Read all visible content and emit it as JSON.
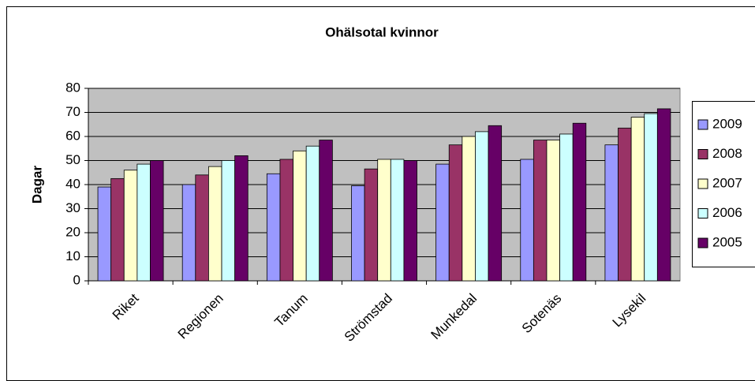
{
  "chart_data": {
    "type": "bar",
    "title": "Ohälsotal kvinnor",
    "y_label": "Dagar",
    "categories": [
      "Riket",
      "Regionen",
      "Tanum",
      "Strömstad",
      "Munkedal",
      "Sotenäs",
      "Lysekil"
    ],
    "series": [
      {
        "name": "2009",
        "color": "#9999ff",
        "values": [
          39,
          40,
          44.5,
          39.5,
          48.5,
          50.5,
          56.5
        ]
      },
      {
        "name": "2008",
        "color": "#993366",
        "values": [
          42.5,
          44,
          50.5,
          46.5,
          56.5,
          58.5,
          63.5
        ]
      },
      {
        "name": "2007",
        "color": "#ffffcc",
        "values": [
          46,
          47.5,
          54,
          50.5,
          60,
          58.5,
          68
        ]
      },
      {
        "name": "2006",
        "color": "#ccffff",
        "values": [
          48.5,
          50,
          56,
          50.5,
          62,
          61,
          69.5
        ]
      },
      {
        "name": "2005",
        "color": "#660066",
        "values": [
          50,
          52,
          58.5,
          50,
          64.5,
          65.5,
          71.5
        ]
      }
    ],
    "ylim": [
      0,
      80
    ],
    "yticks": [
      0,
      10,
      20,
      30,
      40,
      50,
      60,
      70,
      80
    ],
    "grid": true,
    "legend": "right"
  }
}
